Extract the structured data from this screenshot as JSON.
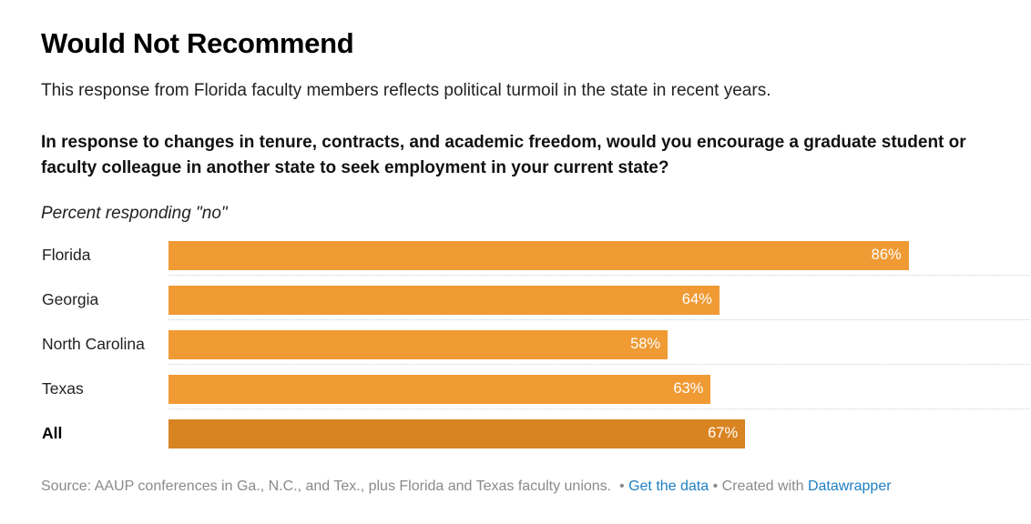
{
  "header": {
    "title": "Would Not Recommend",
    "subtitle": "This response from Florida faculty members reflects political turmoil in the state in recent years.",
    "question": "In response to changes in tenure, contracts, and academic freedom, would you encourage a graduate student or faculty colleague in another state to seek employment in your current state?",
    "note": "Percent responding \"no\""
  },
  "chart_data": {
    "type": "bar",
    "orientation": "horizontal",
    "categories": [
      "Florida",
      "Georgia",
      "North Carolina",
      "Texas",
      "All"
    ],
    "values": [
      86,
      64,
      58,
      63,
      67
    ],
    "value_labels": [
      "86%",
      "64%",
      "58%",
      "63%",
      "67%"
    ],
    "xlim": [
      0,
      100
    ],
    "unit": "%",
    "colors": {
      "bar": "#f09a34",
      "total_bar": "#d98422"
    }
  },
  "footer": {
    "source": "Source: AAUP conferences in Ga., N.C., and Tex., plus Florida and Texas faculty unions.",
    "get_data_link": "Get the data",
    "created_with": "Created with",
    "datawrapper_link": "Datawrapper",
    "separator": "•"
  }
}
